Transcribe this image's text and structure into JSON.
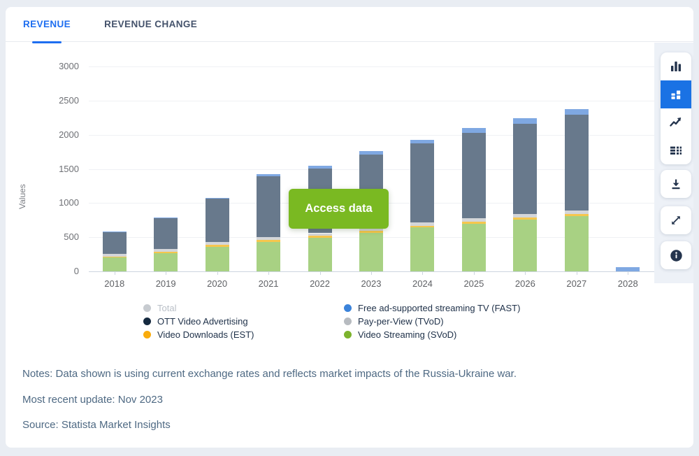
{
  "tabs": {
    "revenue": "REVENUE",
    "revenue_change": "REVENUE CHANGE"
  },
  "access_button": {
    "label": "Access data",
    "color": "#7ab922"
  },
  "chart_data": {
    "type": "bar",
    "stacked": true,
    "title": "",
    "xlabel": "",
    "ylabel": "Values",
    "ylim": [
      0,
      3000
    ],
    "yticks": [
      0,
      500,
      1000,
      1500,
      2000,
      2500,
      3000
    ],
    "grid": "horizontal",
    "legend_position": "bottom",
    "categories": [
      "2018",
      "2019",
      "2020",
      "2021",
      "2022",
      "2023",
      "2024",
      "2025",
      "2026",
      "2027",
      "2028"
    ],
    "series": [
      {
        "name": "Video Streaming (SVoD)",
        "color": "#a8d183",
        "legend_color": "#7cb32d",
        "values": [
          200,
          265,
          360,
          430,
          490,
          565,
          640,
          700,
          755,
          810,
          0
        ]
      },
      {
        "name": "Video Downloads (EST)",
        "color": "#f6c64d",
        "legend_color": "#f9ac0d",
        "values": [
          20,
          22,
          25,
          28,
          28,
          28,
          30,
          30,
          32,
          32,
          0
        ]
      },
      {
        "name": "Pay-per-View (TVoD)",
        "color": "#d4d6d9",
        "legend_color": "#b7bbc0",
        "values": [
          35,
          38,
          40,
          42,
          40,
          40,
          42,
          45,
          48,
          50,
          0
        ]
      },
      {
        "name": "OTT Video Advertising",
        "color": "#68798c",
        "legend_color": "#15293f",
        "values": [
          320,
          455,
          640,
          895,
          950,
          1080,
          1160,
          1255,
          1325,
          1398,
          0
        ]
      },
      {
        "name": "Free ad-supported streaming TV (FAST)",
        "color": "#7fa8e2",
        "legend_color": "#3b83da",
        "values": [
          5,
          10,
          15,
          25,
          37,
          47,
          58,
          70,
          80,
          90,
          65
        ]
      }
    ],
    "totals": [
      580,
      790,
      1080,
      1420,
      1545,
      1760,
      1930,
      2100,
      2240,
      2380,
      65
    ],
    "stack_order": "bottom-to-top: SVoD, EST, TVoD, OTT Video Advertising, FAST",
    "disabled_series": [
      "Total"
    ]
  },
  "legend": {
    "col1": [
      {
        "label": "Total",
        "color": "#c7cbd0",
        "dim": true
      },
      {
        "label": "OTT Video Advertising",
        "color": "#15293f",
        "dim": false
      },
      {
        "label": "Video Downloads (EST)",
        "color": "#f9ac0d",
        "dim": false
      }
    ],
    "col2": [
      {
        "label": "Free ad-supported streaming TV (FAST)",
        "color": "#3b83da",
        "dim": false
      },
      {
        "label": "Pay-per-View (TVoD)",
        "color": "#b7bbc0",
        "dim": false
      },
      {
        "label": "Video Streaming (SVoD)",
        "color": "#7cb32d",
        "dim": false
      }
    ]
  },
  "notes": {
    "line1": "Notes: Data shown is using current exchange rates and reflects market impacts of the Russia-Ukraine war.",
    "line2": "Most recent update: Nov 2023",
    "line3": "Source: Statista Market Insights"
  },
  "toolbar": {
    "chart_types": [
      "bar-chart",
      "stacked-bar-chart",
      "line-chart",
      "table-view"
    ],
    "active_chart_type": "stacked-bar-chart",
    "actions": [
      "download",
      "expand",
      "info"
    ],
    "active_color": "#1a72e4"
  }
}
